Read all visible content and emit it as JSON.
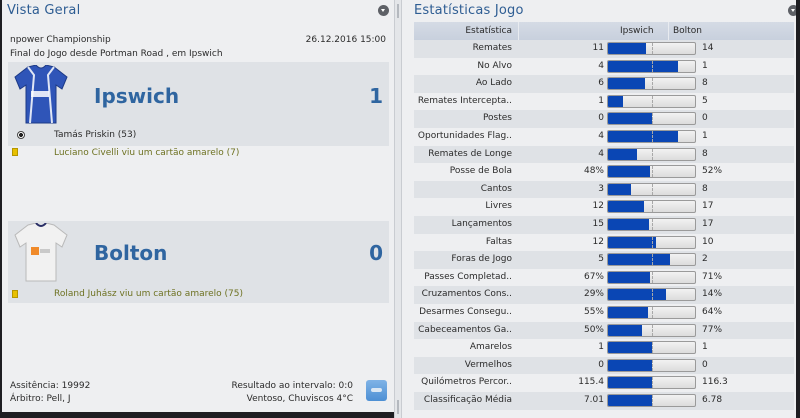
{
  "overview": {
    "title": "Vista Geral",
    "competition": "npower Championship",
    "datetime": "26.12.2016 15:00",
    "venue_line": "Final do Jogo desde Portman Road , em Ipswich",
    "home": {
      "name": "Ipswich",
      "score": "1",
      "kit_color": "#2f55b8",
      "events": [
        {
          "type": "goal",
          "icon": "ball-icon",
          "text": "Tamás Priskin (53)"
        },
        {
          "type": "yellow-card",
          "icon": "yellow-card-icon",
          "text": "Luciano Civelli viu um cartão amarelo (7)"
        }
      ]
    },
    "away": {
      "name": "Bolton",
      "score": "0",
      "kit_color": "#f0f0f0",
      "events": [
        {
          "type": "yellow-card",
          "icon": "yellow-card-icon",
          "text": "Roland Juhász viu um cartão amarelo (75)"
        }
      ]
    },
    "attendance": "Assitência: 19992",
    "referee": "Árbitro: Pell, J",
    "half_time": "Resultado ao intervalo: 0:0",
    "weather": "Ventoso, Chuviscos 4°C",
    "weather_icon": "drizzle-cloud-icon"
  },
  "stats": {
    "title": "Estatísticas Jogo",
    "headers": {
      "stat": "Estatística",
      "home": "Ipswich",
      "away": "Bolton"
    },
    "bar_color": "#0a46b4",
    "rows": [
      {
        "label": "Remates",
        "home": "11",
        "away": "14",
        "fill": 44
      },
      {
        "label": "No Alvo",
        "home": "4",
        "away": "1",
        "fill": 80
      },
      {
        "label": "Ao Lado",
        "home": "6",
        "away": "8",
        "fill": 43
      },
      {
        "label": "Remates Intercepta..",
        "home": "1",
        "away": "5",
        "fill": 17
      },
      {
        "label": "Postes",
        "home": "0",
        "away": "0",
        "fill": 50
      },
      {
        "label": "Oportunidades Flag..",
        "home": "4",
        "away": "1",
        "fill": 80
      },
      {
        "label": "Remates de Longe",
        "home": "4",
        "away": "8",
        "fill": 33
      },
      {
        "label": "Posse de Bola",
        "home": "48%",
        "away": "52%",
        "fill": 48
      },
      {
        "label": "Cantos",
        "home": "3",
        "away": "8",
        "fill": 27
      },
      {
        "label": "Livres",
        "home": "12",
        "away": "17",
        "fill": 41
      },
      {
        "label": "Lançamentos",
        "home": "15",
        "away": "17",
        "fill": 47
      },
      {
        "label": "Faltas",
        "home": "12",
        "away": "10",
        "fill": 55
      },
      {
        "label": "Foras de Jogo",
        "home": "5",
        "away": "2",
        "fill": 71
      },
      {
        "label": "Passes Completad..",
        "home": "67%",
        "away": "71%",
        "fill": 48
      },
      {
        "label": "Cruzamentos Cons..",
        "home": "29%",
        "away": "14%",
        "fill": 67
      },
      {
        "label": "Desarmes Consegu..",
        "home": "55%",
        "away": "64%",
        "fill": 46
      },
      {
        "label": "Cabeceamentos Ga..",
        "home": "50%",
        "away": "77%",
        "fill": 39
      },
      {
        "label": "Amarelos",
        "home": "1",
        "away": "1",
        "fill": 50
      },
      {
        "label": "Vermelhos",
        "home": "0",
        "away": "0",
        "fill": 50
      },
      {
        "label": "Quilómetros Percor..",
        "home": "115.4",
        "away": "116.3",
        "fill": 50
      },
      {
        "label": "Classificação Média",
        "home": "7.01",
        "away": "6.78",
        "fill": 51
      }
    ]
  }
}
